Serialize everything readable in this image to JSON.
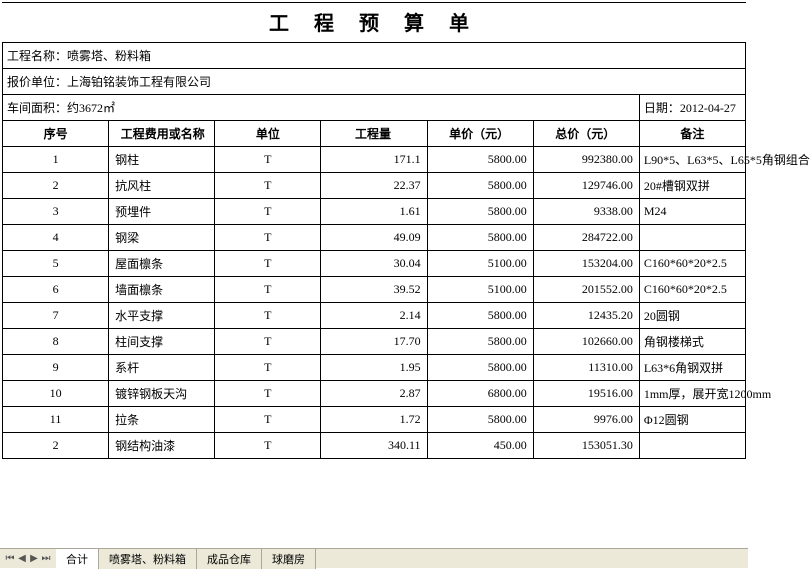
{
  "title": "工 程 预 算 单",
  "header": {
    "projectLabel": "工程名称：",
    "projectName": "喷雾塔、粉料箱",
    "vendorLabel": "报价单位：",
    "vendorName": "上海铂铭装饰工程有限公司",
    "areaLabel": "车间面积：",
    "areaValue": "约3672㎡",
    "dateLabel": "日期：",
    "dateValue": "2012-04-27"
  },
  "columns": {
    "no": "序号",
    "name": "工程费用或名称",
    "unit": "单位",
    "qty": "工程量",
    "price": "单价（元）",
    "total": "总价（元）",
    "remark": "备注"
  },
  "rows": [
    {
      "no": "1",
      "name": "钢柱",
      "unit": "T",
      "qty": "171.1",
      "price": "5800.00",
      "total": "992380.00",
      "remark": "L90*5、L63*5、L65*5角钢组合"
    },
    {
      "no": "2",
      "name": "抗风柱",
      "unit": "T",
      "qty": "22.37",
      "price": "5800.00",
      "total": "129746.00",
      "remark": "20#槽钢双拼"
    },
    {
      "no": "3",
      "name": "预埋件",
      "unit": "T",
      "qty": "1.61",
      "price": "5800.00",
      "total": "9338.00",
      "remark": "M24"
    },
    {
      "no": "4",
      "name": "钢梁",
      "unit": "T",
      "qty": "49.09",
      "price": "5800.00",
      "total": "284722.00",
      "remark": ""
    },
    {
      "no": "5",
      "name": "屋面檩条",
      "unit": "T",
      "qty": "30.04",
      "price": "5100.00",
      "total": "153204.00",
      "remark": "C160*60*20*2.5"
    },
    {
      "no": "6",
      "name": "墙面檩条",
      "unit": "T",
      "qty": "39.52",
      "price": "5100.00",
      "total": "201552.00",
      "remark": "C160*60*20*2.5"
    },
    {
      "no": "7",
      "name": "水平支撑",
      "unit": "T",
      "qty": "2.14",
      "price": "5800.00",
      "total": "12435.20",
      "remark": "20圆钢"
    },
    {
      "no": "8",
      "name": "柱间支撑",
      "unit": "T",
      "qty": "17.70",
      "price": "5800.00",
      "total": "102660.00",
      "remark": "角钢楼梯式"
    },
    {
      "no": "9",
      "name": "系杆",
      "unit": "T",
      "qty": "1.95",
      "price": "5800.00",
      "total": "11310.00",
      "remark": "L63*6角钢双拼"
    },
    {
      "no": "10",
      "name": "镀锌钢板天沟",
      "unit": "T",
      "qty": "2.87",
      "price": "6800.00",
      "total": "19516.00",
      "remark": "1mm厚，展开宽1200mm"
    },
    {
      "no": "11",
      "name": "拉条",
      "unit": "T",
      "qty": "1.72",
      "price": "5800.00",
      "total": "9976.00",
      "remark": "Φ12圆钢"
    },
    {
      "no": "2",
      "name": "钢结构油漆",
      "unit": "T",
      "qty": "340.11",
      "price": "450.00",
      "total": "153051.30",
      "remark": ""
    }
  ],
  "tabs": {
    "items": [
      "合计",
      "喷雾塔、粉料箱",
      "成品仓库",
      "球磨房"
    ],
    "activeIndex": 0
  }
}
